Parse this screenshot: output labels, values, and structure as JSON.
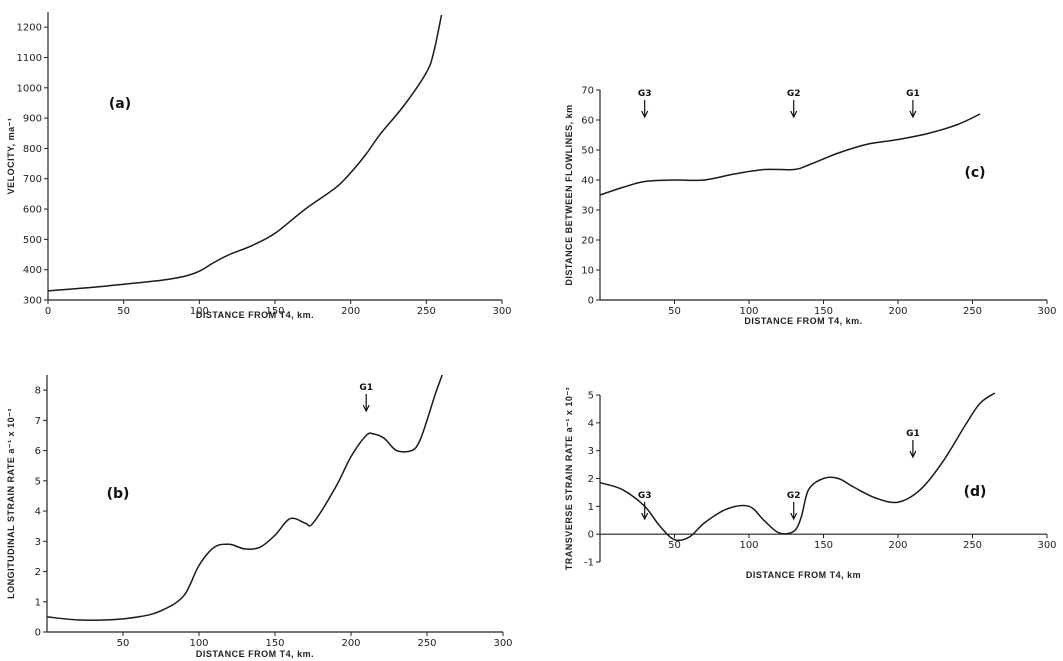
{
  "chart_data": [
    {
      "id": "a",
      "type": "line",
      "panel_label": "(a)",
      "xlabel": "DISTANCE FROM T4, km.",
      "ylabel": "VELOCITY, ma⁻¹",
      "xlim": [
        0,
        300
      ],
      "ylim": [
        300,
        1250
      ],
      "xticks": [
        0,
        50,
        100,
        150,
        200,
        250,
        300
      ],
      "xtick_labels": [
        "0",
        "50",
        "100",
        "150",
        "200",
        "250",
        "300"
      ],
      "yticks": [
        300,
        400,
        500,
        600,
        700,
        800,
        900,
        1000,
        1100,
        1200
      ],
      "ytick_labels": [
        "300",
        "400",
        "500",
        "600",
        "700",
        "800",
        "900",
        "1000",
        "1100",
        "1200"
      ],
      "x": [
        0,
        25,
        50,
        75,
        90,
        100,
        110,
        120,
        135,
        150,
        170,
        190,
        200,
        210,
        220,
        235,
        250,
        255,
        260
      ],
      "y": [
        330,
        340,
        352,
        365,
        378,
        395,
        425,
        450,
        480,
        520,
        600,
        670,
        720,
        780,
        850,
        940,
        1050,
        1120,
        1240
      ],
      "annotations": []
    },
    {
      "id": "b",
      "type": "line",
      "panel_label": "(b)",
      "xlabel": "DISTANCE FROM T4, km.",
      "ylabel": "LONGITUDINAL STRAIN RATE a⁻¹ x 10⁻³",
      "xlim": [
        0,
        300
      ],
      "ylim": [
        0,
        8.5
      ],
      "xticks": [
        50,
        100,
        150,
        200,
        250,
        300
      ],
      "xtick_labels": [
        "50",
        "100",
        "150",
        "200",
        "250",
        "300"
      ],
      "yticks": [
        0,
        1,
        2,
        3,
        4,
        5,
        6,
        7,
        8
      ],
      "ytick_labels": [
        "0",
        "1",
        "2",
        "3",
        "4",
        "5",
        "6",
        "7",
        "8"
      ],
      "x": [
        0,
        20,
        40,
        60,
        75,
        90,
        100,
        110,
        120,
        130,
        140,
        150,
        160,
        170,
        175,
        190,
        200,
        210,
        215,
        222,
        230,
        240,
        245,
        250,
        255,
        260
      ],
      "y": [
        0.5,
        0.4,
        0.4,
        0.5,
        0.7,
        1.2,
        2.2,
        2.8,
        2.9,
        2.75,
        2.8,
        3.2,
        3.75,
        3.6,
        3.6,
        4.8,
        5.8,
        6.5,
        6.55,
        6.4,
        6.0,
        6.0,
        6.3,
        7.0,
        7.8,
        8.5
      ],
      "annotations": [
        {
          "label": "G1",
          "x": 210
        }
      ]
    },
    {
      "id": "c",
      "type": "line",
      "panel_label": "(c)",
      "xlabel": "DISTANCE FROM T4, km.",
      "ylabel": "DISTANCE BETWEEN FLOWLINES, km",
      "xlim": [
        0,
        300
      ],
      "ylim": [
        0,
        70
      ],
      "xticks": [
        50,
        100,
        150,
        200,
        250,
        300
      ],
      "xtick_labels": [
        "50",
        "100",
        "150",
        "200",
        "250",
        "300"
      ],
      "yticks": [
        0,
        10,
        20,
        30,
        40,
        50,
        60,
        70
      ],
      "ytick_labels": [
        "0",
        "10",
        "20",
        "30",
        "40",
        "50",
        "60",
        "70"
      ],
      "x": [
        0,
        15,
        30,
        50,
        70,
        90,
        110,
        130,
        140,
        160,
        180,
        200,
        220,
        240,
        255
      ],
      "y": [
        35,
        37.5,
        39.5,
        40,
        40,
        42,
        43.5,
        43.5,
        45,
        49,
        52,
        53.5,
        55.5,
        58.5,
        62
      ],
      "annotations": [
        {
          "label": "G3",
          "x": 30
        },
        {
          "label": "G2",
          "x": 130
        },
        {
          "label": "G1",
          "x": 210
        }
      ]
    },
    {
      "id": "d",
      "type": "line",
      "panel_label": "(d)",
      "xlabel": "DISTANCE FROM T4, km",
      "ylabel": "TRANSVERSE STRAIN RATE a⁻¹ x 10⁻³",
      "xlim": [
        0,
        300
      ],
      "ylim": [
        -1,
        5
      ],
      "xticks": [
        50,
        100,
        150,
        200,
        250,
        300
      ],
      "xtick_labels": [
        "50",
        "100",
        "150",
        "200",
        "250",
        "300"
      ],
      "yticks": [
        -1,
        0,
        1,
        2,
        3,
        4,
        5
      ],
      "ytick_labels": [
        "-1",
        "0",
        "1",
        "2",
        "3",
        "4",
        "5"
      ],
      "x": [
        0,
        15,
        30,
        40,
        50,
        60,
        70,
        85,
        100,
        110,
        120,
        130,
        135,
        140,
        150,
        160,
        170,
        185,
        200,
        215,
        230,
        245,
        255,
        265
      ],
      "y": [
        1.85,
        1.6,
        1.0,
        0.3,
        -0.2,
        -0.1,
        0.4,
        0.9,
        1.0,
        0.5,
        0.05,
        0.1,
        0.6,
        1.6,
        2.0,
        2.0,
        1.7,
        1.3,
        1.15,
        1.6,
        2.6,
        3.9,
        4.7,
        5.4
      ],
      "annotations": [
        {
          "label": "G3",
          "x": 30
        },
        {
          "label": "G2",
          "x": 130
        },
        {
          "label": "G1",
          "x": 210
        }
      ]
    }
  ]
}
